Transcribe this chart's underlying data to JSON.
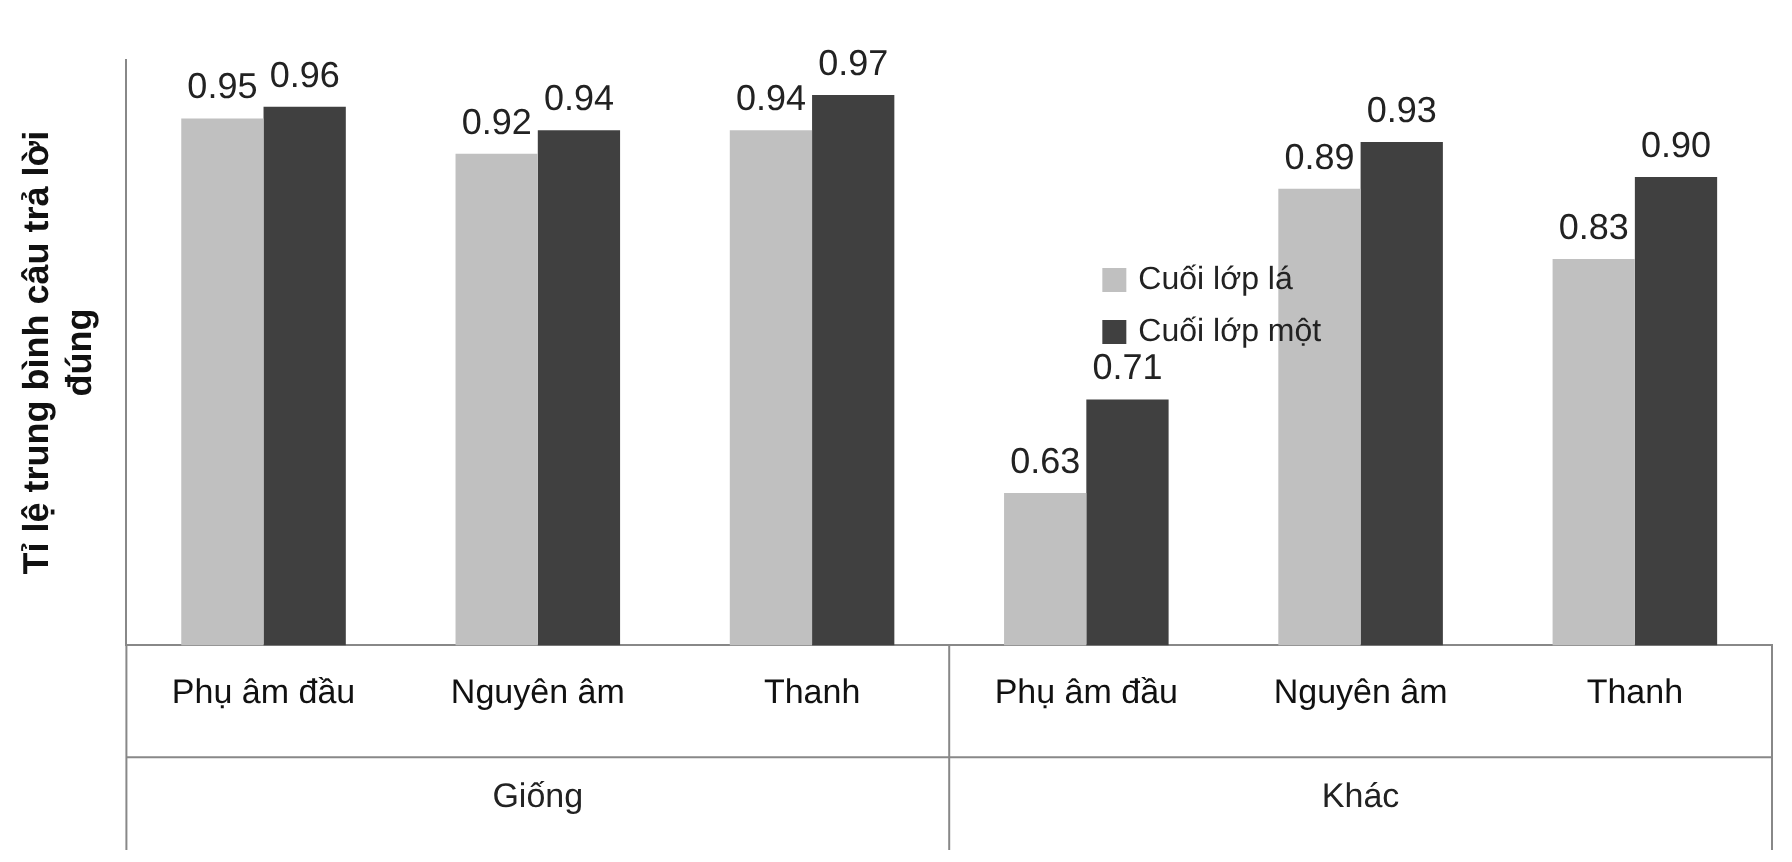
{
  "chart_data": {
    "type": "bar",
    "ylabel": "Tỉ lệ trung bình câu trả lời đúng",
    "categories": [
      "Phụ âm đầu",
      "Nguyên âm",
      "Thanh",
      "Phụ âm đầu",
      "Nguyên âm",
      "Thanh"
    ],
    "series": [
      {
        "name": "Cuối lớp lá",
        "color": "#c0c0c0",
        "values": [
          0.95,
          0.92,
          0.94,
          0.63,
          0.89,
          0.83
        ],
        "value_labels": [
          "0.95",
          "0.92",
          "0.94",
          "0.63",
          "0.89",
          "0.83"
        ]
      },
      {
        "name": "Cuối lớp một",
        "color": "#404040",
        "values": [
          0.96,
          0.94,
          0.97,
          0.71,
          0.93,
          0.9
        ],
        "value_labels": [
          "0.96",
          "0.94",
          "0.97",
          "0.71",
          "0.93",
          "0.90"
        ]
      }
    ],
    "annotations": [
      "Giống",
      "Khác"
    ],
    "ylim": [
      0.5,
      1.0
    ],
    "tick_labels": "x",
    "grid": false,
    "legend": "right"
  }
}
